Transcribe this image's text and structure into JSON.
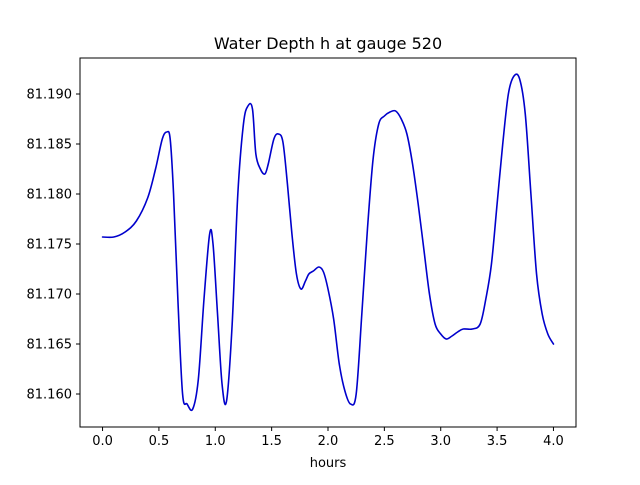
{
  "chart_data": {
    "type": "line",
    "title": "Water Depth h at gauge 520",
    "xlabel": "hours",
    "ylabel": "",
    "xlim": [
      -0.2,
      4.2
    ],
    "ylim": [
      81.1567,
      81.1936
    ],
    "xticks": [
      0.0,
      0.5,
      1.0,
      1.5,
      2.0,
      2.5,
      3.0,
      3.5,
      4.0
    ],
    "xtick_labels": [
      "0.0",
      "0.5",
      "1.0",
      "1.5",
      "2.0",
      "2.5",
      "3.0",
      "3.5",
      "4.0"
    ],
    "yticks": [
      81.16,
      81.165,
      81.17,
      81.175,
      81.18,
      81.185,
      81.19
    ],
    "ytick_labels": [
      "81.160",
      "81.165",
      "81.170",
      "81.175",
      "81.180",
      "81.185",
      "81.190"
    ],
    "grid": false,
    "line_color": "#0000cc",
    "series": [
      {
        "x": [
          0.0,
          0.1,
          0.2,
          0.3,
          0.4,
          0.47,
          0.53,
          0.57,
          0.6,
          0.63,
          0.67,
          0.71,
          0.75,
          0.8,
          0.85,
          0.9,
          0.95,
          0.98,
          1.02,
          1.06,
          1.1,
          1.15,
          1.2,
          1.25,
          1.29,
          1.33,
          1.36,
          1.4,
          1.44,
          1.47,
          1.52,
          1.56,
          1.6,
          1.64,
          1.68,
          1.72,
          1.76,
          1.8,
          1.83,
          1.87,
          1.92,
          1.96,
          2.0,
          2.05,
          2.1,
          2.15,
          2.2,
          2.25,
          2.3,
          2.35,
          2.4,
          2.45,
          2.5,
          2.55,
          2.6,
          2.65,
          2.7,
          2.75,
          2.8,
          2.85,
          2.9,
          2.95,
          3.0,
          3.05,
          3.1,
          3.15,
          3.2,
          3.28,
          3.35,
          3.4,
          3.45,
          3.5,
          3.55,
          3.6,
          3.65,
          3.7,
          3.75,
          3.8,
          3.85,
          3.9,
          3.95,
          4.0
        ],
        "y": [
          81.1757,
          81.1757,
          81.1762,
          81.1773,
          81.1796,
          81.1825,
          81.1855,
          81.1862,
          81.1855,
          81.18,
          81.169,
          81.16,
          81.159,
          81.1585,
          81.1615,
          81.1695,
          81.176,
          81.175,
          81.168,
          81.161,
          81.1593,
          81.167,
          81.18,
          81.187,
          81.1888,
          81.1885,
          81.184,
          81.1825,
          81.182,
          81.183,
          81.1855,
          81.186,
          81.1852,
          81.181,
          81.176,
          81.172,
          81.1705,
          81.1713,
          81.172,
          81.1723,
          81.1727,
          81.1722,
          81.1705,
          81.1675,
          81.163,
          81.1603,
          81.159,
          81.16,
          81.168,
          81.1765,
          81.1835,
          81.187,
          81.1878,
          81.1882,
          81.1883,
          81.1875,
          81.186,
          81.183,
          81.179,
          81.1745,
          81.17,
          81.167,
          81.166,
          81.1655,
          81.1658,
          81.1662,
          81.1665,
          81.1665,
          81.167,
          81.1695,
          81.173,
          81.179,
          81.185,
          81.19,
          81.1918,
          81.1915,
          81.188,
          81.18,
          81.172,
          81.168,
          81.166,
          81.165
        ]
      }
    ]
  }
}
